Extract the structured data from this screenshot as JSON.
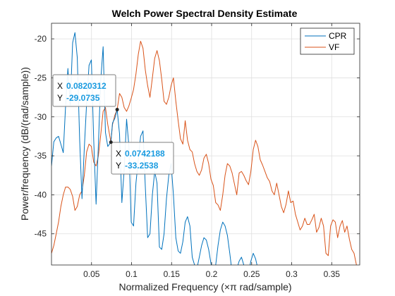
{
  "chart_data": {
    "type": "line",
    "title": "Welch Power Spectral Density Estimate",
    "xlabel": "Normalized Frequency  (×π rad/sample)",
    "ylabel": "Power/frequency (dB/(rad/sample))",
    "xlim": [
      0,
      0.385
    ],
    "ylim": [
      -49,
      -18
    ],
    "xticks": [
      0.05,
      0.1,
      0.15,
      0.2,
      0.25,
      0.3,
      0.35
    ],
    "xtick_labels": [
      "0.05",
      "0.1",
      "0.15",
      "0.2",
      "0.25",
      "0.3",
      "0.35"
    ],
    "yticks": [
      -45,
      -40,
      -35,
      -30,
      -25,
      -20
    ],
    "ytick_labels": [
      "-45",
      "-40",
      "-35",
      "-30",
      "-25",
      "-20"
    ],
    "grid": true,
    "legend": {
      "placement": "top-right"
    },
    "series": [
      {
        "name": "CPR",
        "color": "#0072BD",
        "x": [
          0.0,
          0.0029,
          0.0059,
          0.0088,
          0.0117,
          0.0147,
          0.0176,
          0.0205,
          0.0234,
          0.0264,
          0.0293,
          0.0322,
          0.0352,
          0.0381,
          0.041,
          0.0439,
          0.0469,
          0.0498,
          0.0527,
          0.0557,
          0.0586,
          0.0615,
          0.0645,
          0.0674,
          0.0703,
          0.0742,
          0.0762,
          0.0791,
          0.082,
          0.085,
          0.0879,
          0.0908,
          0.0938,
          0.0967,
          0.0996,
          0.1025,
          0.1055,
          0.1084,
          0.1113,
          0.1143,
          0.1172,
          0.1201,
          0.123,
          0.126,
          0.1289,
          0.1318,
          0.1348,
          0.1377,
          0.1406,
          0.1436,
          0.1465,
          0.1494,
          0.1523,
          0.1553,
          0.1582,
          0.1611,
          0.1641,
          0.167,
          0.1699,
          0.1729,
          0.1758,
          0.1787,
          0.1816,
          0.1846,
          0.1875,
          0.1904,
          0.1934,
          0.1963,
          0.1992,
          0.2021,
          0.2051,
          0.208,
          0.2109,
          0.2139,
          0.2168,
          0.2197,
          0.2227,
          0.2256,
          0.2285,
          0.2314,
          0.2344,
          0.2373,
          0.2402,
          0.2432,
          0.2461,
          0.249,
          0.252,
          0.2549,
          0.2578,
          0.2607
        ],
        "y": [
          -36.3,
          -33.2,
          -32.7,
          -32.5,
          -33.5,
          -34.6,
          -28.6,
          -23.8,
          -28.5,
          -20.5,
          -19.2,
          -22.4,
          -33.0,
          -40.5,
          -34.0,
          -28.2,
          -23.4,
          -22.7,
          -32.9,
          -41.2,
          -33.5,
          -25.3,
          -21.0,
          -32.0,
          -33.8,
          -33.25,
          -30.8,
          -30.2,
          -29.07,
          -32.2,
          -41.0,
          -36.8,
          -30.3,
          -33.8,
          -43.5,
          -44.0,
          -38.5,
          -35.5,
          -32.5,
          -31.8,
          -39.0,
          -45.5,
          -45.0,
          -40.0,
          -37.0,
          -38.5,
          -46.7,
          -47.0,
          -45.0,
          -40.5,
          -37.5,
          -36.0,
          -40.0,
          -45.5,
          -47.2,
          -47.5,
          -46.0,
          -43.5,
          -42.8,
          -44.0,
          -48.0,
          -49.0,
          -49.5,
          -48.0,
          -46.5,
          -45.5,
          -45.8,
          -47.0,
          -48.8,
          -50.0,
          -49.0,
          -46.5,
          -44.5,
          -43.5,
          -44.0,
          -45.2,
          -47.5,
          -50.0,
          -50.0,
          -49.5,
          -48.5,
          -48.0,
          -49.0,
          -50.0,
          -50.0,
          -48.5,
          -47.5,
          -48.2,
          -49.5,
          -50.0
        ]
      },
      {
        "name": "VF",
        "color": "#D95319",
        "x": [
          0.0,
          0.0029,
          0.0059,
          0.0088,
          0.0117,
          0.0147,
          0.0176,
          0.0205,
          0.0234,
          0.0264,
          0.0293,
          0.0322,
          0.0352,
          0.0381,
          0.041,
          0.0439,
          0.0469,
          0.0498,
          0.0527,
          0.0557,
          0.0586,
          0.0615,
          0.0645,
          0.0674,
          0.0703,
          0.0742,
          0.0762,
          0.0791,
          0.082,
          0.085,
          0.0879,
          0.0908,
          0.0938,
          0.0967,
          0.0996,
          0.1025,
          0.1055,
          0.1084,
          0.1113,
          0.1143,
          0.1172,
          0.1201,
          0.123,
          0.126,
          0.1289,
          0.1318,
          0.1348,
          0.1377,
          0.1406,
          0.1436,
          0.1465,
          0.1494,
          0.1523,
          0.1553,
          0.1582,
          0.1611,
          0.1641,
          0.167,
          0.1699,
          0.1729,
          0.1758,
          0.1787,
          0.1816,
          0.1846,
          0.1875,
          0.1904,
          0.1934,
          0.1963,
          0.1992,
          0.2021,
          0.2051,
          0.208,
          0.2109,
          0.2139,
          0.2168,
          0.2197,
          0.2227,
          0.2256,
          0.2285,
          0.2314,
          0.2344,
          0.2373,
          0.2402,
          0.2432,
          0.2461,
          0.249,
          0.252,
          0.2549,
          0.2578,
          0.2607,
          0.2637,
          0.2666,
          0.2695,
          0.2725,
          0.2754,
          0.2783,
          0.2813,
          0.2842,
          0.2871,
          0.29,
          0.293,
          0.2959,
          0.2988,
          0.3018,
          0.3047,
          0.3076,
          0.3105,
          0.3135,
          0.3164,
          0.3193,
          0.3223,
          0.3252,
          0.3281,
          0.3311,
          0.334,
          0.3369,
          0.3398,
          0.3428,
          0.3457,
          0.3486,
          0.3516,
          0.3545,
          0.3574,
          0.3604,
          0.3633,
          0.3662,
          0.3691,
          0.3721,
          0.375,
          0.3779,
          0.3809,
          0.3838,
          0.3867
        ],
        "y": [
          -47.5,
          -46.5,
          -45.0,
          -43.5,
          -41.5,
          -40.0,
          -39.0,
          -39.0,
          -39.3,
          -40.2,
          -42.0,
          -41.5,
          -40.0,
          -39.5,
          -37.5,
          -34.5,
          -33.5,
          -33.8,
          -35.8,
          -36.3,
          -35.0,
          -32.3,
          -29.3,
          -28.8,
          -31.0,
          -33.25,
          -31.0,
          -29.8,
          -29.07,
          -27.0,
          -27.5,
          -28.8,
          -29.3,
          -28.6,
          -27.6,
          -26.5,
          -24.5,
          -22.0,
          -20.3,
          -21.2,
          -24.0,
          -26.0,
          -27.5,
          -25.0,
          -22.5,
          -21.5,
          -22.8,
          -25.2,
          -28.0,
          -28.4,
          -27.5,
          -26.0,
          -25.0,
          -28.0,
          -30.5,
          -32.8,
          -33.5,
          -30.5,
          -33.0,
          -34.2,
          -34.5,
          -36.0,
          -37.0,
          -37.5,
          -36.8,
          -35.3,
          -34.8,
          -36.0,
          -38.0,
          -38.8,
          -41.0,
          -41.3,
          -42.0,
          -40.0,
          -37.5,
          -36.0,
          -36.3,
          -37.2,
          -38.6,
          -40.0,
          -37.2,
          -37.0,
          -37.5,
          -38.2,
          -38.7,
          -37.0,
          -34.2,
          -33.0,
          -33.8,
          -35.5,
          -36.2,
          -37.0,
          -37.8,
          -38.3,
          -39.5,
          -40.0,
          -38.5,
          -40.0,
          -41.5,
          -42.3,
          -41.2,
          -39.5,
          -41.0,
          -40.8,
          -42.5,
          -43.5,
          -44.5,
          -44.0,
          -43.0,
          -43.8,
          -43.8,
          -43.2,
          -42.5,
          -44.8,
          -44.2,
          -43.0,
          -44.0,
          -47.5,
          -47.8,
          -44.0,
          -43.2,
          -43.5,
          -45.5,
          -44.0,
          -43.3,
          -44.8,
          -44.0,
          -45.7,
          -47.0,
          -47.5,
          -49.0,
          -50.0,
          -50.0
        ]
      }
    ],
    "datatips": [
      {
        "x_label": "X",
        "x_value": "0.0820312",
        "y_label": "Y",
        "y_value": "-29.0735",
        "point": [
          0.0820312,
          -29.0735
        ]
      },
      {
        "x_label": "X",
        "x_value": "0.0742188",
        "y_label": "Y",
        "y_value": "-33.2538",
        "point": [
          0.0742188,
          -33.2538
        ]
      }
    ]
  }
}
